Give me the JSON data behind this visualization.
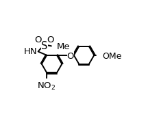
{
  "bg_color": "#ffffff",
  "line_color": "#000000",
  "lw": 1.4,
  "fs": 9.5,
  "fs_small": 9.0,
  "xlim": [
    0,
    10
  ],
  "ylim": [
    0,
    10
  ]
}
